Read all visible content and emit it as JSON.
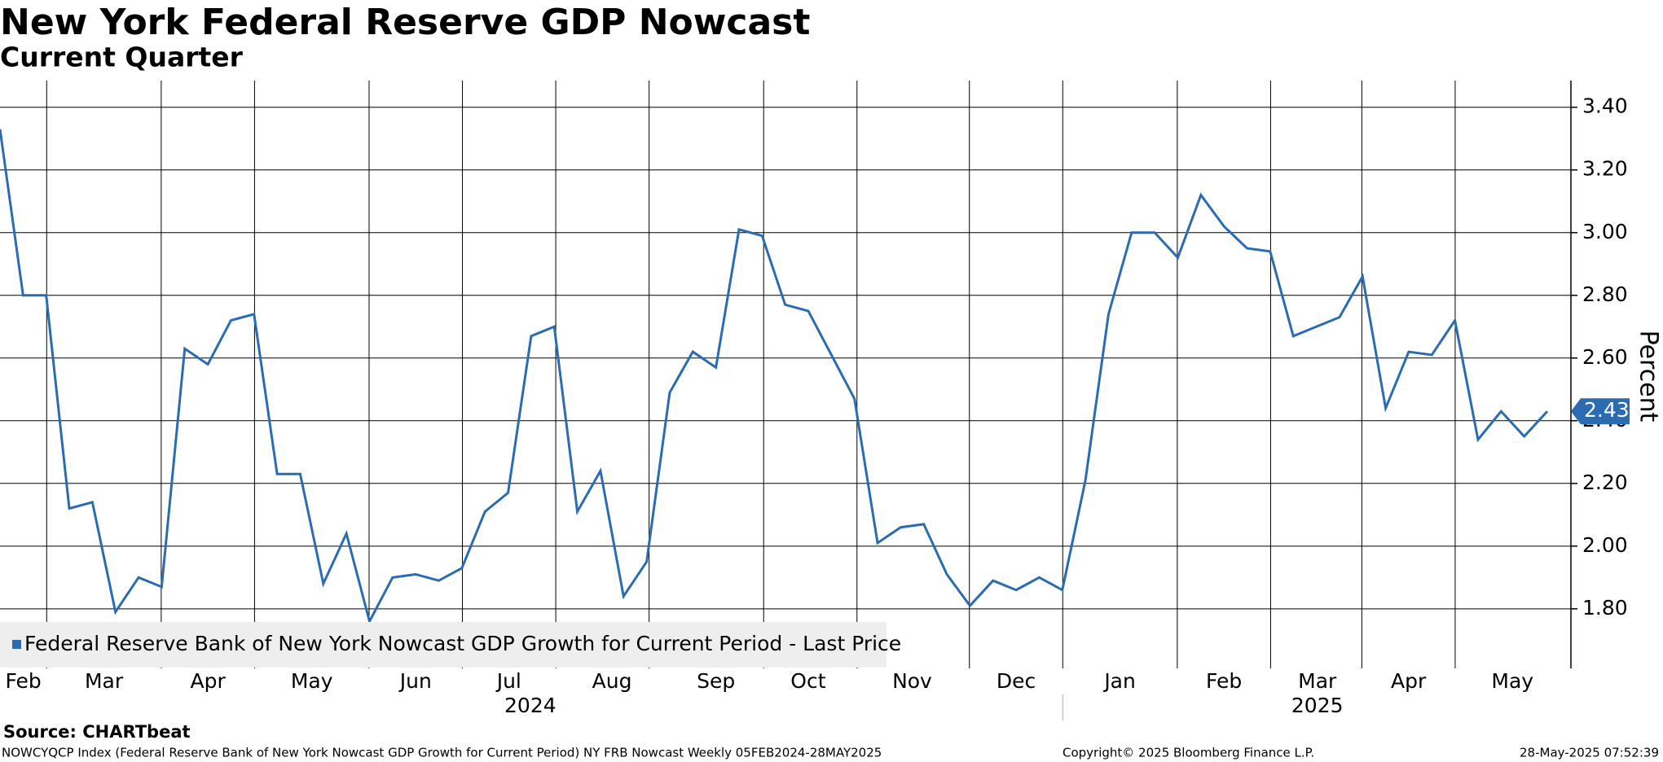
{
  "chart_data": {
    "type": "line",
    "title": "New York Federal Reserve GDP Nowcast",
    "subtitle": "Current Quarter",
    "series": [
      {
        "name": "Federal Reserve Bank of New York Nowcast GDP Growth for Current Period - Last Price",
        "color": "#2b6cb0",
        "values": [
          3.33,
          2.8,
          2.8,
          2.12,
          2.14,
          1.79,
          1.9,
          1.87,
          2.63,
          2.58,
          2.72,
          2.74,
          2.23,
          2.23,
          1.88,
          2.04,
          1.76,
          1.9,
          1.91,
          1.89,
          1.93,
          2.11,
          2.17,
          2.67,
          2.7,
          2.11,
          2.24,
          1.84,
          1.95,
          2.49,
          2.62,
          2.57,
          3.01,
          2.99,
          2.77,
          2.75,
          2.61,
          2.47,
          2.01,
          2.06,
          2.07,
          1.91,
          1.81,
          1.89,
          1.86,
          1.9,
          1.86,
          2.21,
          2.74,
          3.0,
          3.0,
          2.92,
          3.12,
          3.02,
          2.95,
          2.94,
          2.67,
          2.7,
          2.73,
          2.86,
          2.44,
          2.62,
          2.61,
          2.72,
          2.34,
          2.43,
          2.35,
          2.43
        ]
      }
    ],
    "month_labels": [
      "Feb",
      "Mar",
      "Apr",
      "May",
      "Jun",
      "Jul",
      "Aug",
      "Sep",
      "Oct",
      "Nov",
      "Dec",
      "Jan",
      "Feb",
      "Mar",
      "Apr",
      "May"
    ],
    "year_labels": [
      "2024",
      "2025"
    ],
    "ylim": [
      1.61,
      3.485
    ],
    "yticks": [
      {
        "value": 1.8,
        "label": "1.80"
      },
      {
        "value": 2.0,
        "label": "2.00"
      },
      {
        "value": 2.2,
        "label": "2.20"
      },
      {
        "value": 2.4,
        "label": "2.40"
      },
      {
        "value": 2.6,
        "label": "2.60"
      },
      {
        "value": 2.8,
        "label": "2.80"
      },
      {
        "value": 3.0,
        "label": "3.00"
      },
      {
        "value": 3.2,
        "label": "3.20"
      },
      {
        "value": 3.4,
        "label": "3.40"
      }
    ],
    "y_label": "Percent",
    "grid": true,
    "source": "Source: CHARTbeat",
    "footnote": "NOWCYQCP Index (Federal Reserve Bank of New York Nowcast GDP Growth for Current Period) NY FRB Nowcast  Weekly 05FEB2024-28MAY2025",
    "copyright": "Copyright© 2025 Bloomberg Finance L.P.",
    "timestamp": "28-May-2025 07:52:39"
  }
}
